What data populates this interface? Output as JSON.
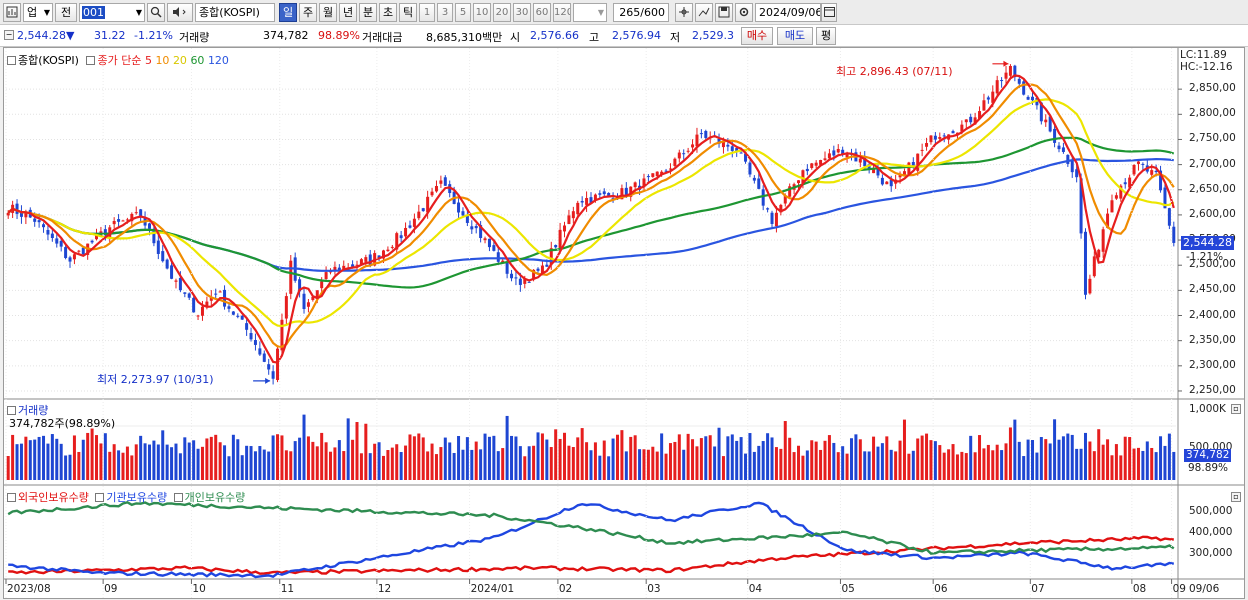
{
  "toolbar": {
    "market": "업",
    "prev": "전",
    "code": "001",
    "name": "종합(KOSPI)",
    "periods": [
      "일",
      "주",
      "월",
      "년",
      "분",
      "초",
      "틱"
    ],
    "selected_period": "일",
    "intervals": [
      "1",
      "3",
      "5",
      "10",
      "20",
      "30",
      "60",
      "120"
    ],
    "count": "265/600",
    "date": "2024/09/06"
  },
  "quote": {
    "price": "2,544.28",
    "change_arrow": "▼",
    "change": "31.22",
    "change_pct": "-1.21%",
    "volume_label": "거래량",
    "volume": "374,782",
    "volume_pct": "98.89%",
    "amount_label": "거래대금",
    "amount": "8,685,310백만",
    "open_label": "시",
    "open": "2,576.66",
    "high_label": "고",
    "high": "2,576.94",
    "low_label": "저",
    "low": "2,529.3",
    "buy_label": "매수",
    "sell_label": "매도",
    "eval_label": "평"
  },
  "price_panel": {
    "name": "종합(KOSPI)",
    "ma_title": "종가 단순",
    "ma_periods": [
      "5",
      "10",
      "20",
      "60",
      "120"
    ],
    "lc": "LC:11.89",
    "hc": "HC:-12.16",
    "high_annotation": "최고 2,896.43 (07/11)",
    "low_annotation": "최저 2,273.97 (10/31)",
    "last_price_tag": "2,544.28",
    "last_change_tag": "-1.21%",
    "y_ticks": [
      "2,850,00",
      "2,800,00",
      "2,750,00",
      "2,700,00",
      "2,650,00",
      "2,600,00",
      "2,550,00",
      "2,500,00",
      "2,450,00",
      "2,400,00",
      "2,350,00",
      "2,300,00",
      "2,250,00"
    ]
  },
  "volume_panel": {
    "title": "거래량",
    "value_label": "374,782주(98.89%)",
    "y_ticks": [
      "1,000K",
      "500,000"
    ],
    "last_tag": "374,782",
    "last_pct": "98.89%"
  },
  "flow_panel": {
    "series": [
      "외국인보유수량",
      "기관보유수량",
      "개인보유수량"
    ],
    "y_ticks": [
      "500,000",
      "400,000",
      "300,000"
    ]
  },
  "x_axis": [
    "2023/08",
    "09",
    "10",
    "11",
    "12",
    "2024/01",
    "02",
    "03",
    "04",
    "05",
    "06",
    "07",
    "08",
    "09"
  ],
  "x_right_label": "09/06",
  "colors": {
    "up": "#e61e1e",
    "down": "#1e46d2",
    "ma5": "#e61e1e",
    "ma10": "#f08c00",
    "ma20": "#ece600",
    "ma60": "#1e9632",
    "ma120": "#2a55e0",
    "foreign": "#e01010",
    "institution": "#1e46e0",
    "individual": "#2e8c50"
  },
  "chart_data": {
    "type": "candlestick",
    "title": "종합(KOSPI)",
    "y_range": [
      2240,
      2900
    ],
    "price_anchors": [
      {
        "date": "2023/08/01",
        "close": 2615
      },
      {
        "date": "2023/08/10",
        "close": 2590
      },
      {
        "date": "2023/08/22",
        "close": 2510
      },
      {
        "date": "2023/09/05",
        "close": 2575
      },
      {
        "date": "2023/09/15",
        "close": 2600
      },
      {
        "date": "2023/09/27",
        "close": 2460
      },
      {
        "date": "2023/10/05",
        "close": 2405
      },
      {
        "date": "2023/10/12",
        "close": 2450
      },
      {
        "date": "2023/10/23",
        "close": 2360
      },
      {
        "date": "2023/10/31",
        "close": 2278
      },
      {
        "date": "2023/11/06",
        "close": 2500
      },
      {
        "date": "2023/11/10",
        "close": 2410
      },
      {
        "date": "2023/11/20",
        "close": 2490
      },
      {
        "date": "2023/12/04",
        "close": 2510
      },
      {
        "date": "2023/12/14",
        "close": 2560
      },
      {
        "date": "2023/12/28",
        "close": 2660
      },
      {
        "date": "2024/01/10",
        "close": 2560
      },
      {
        "date": "2024/01/22",
        "close": 2465
      },
      {
        "date": "2024/02/01",
        "close": 2490
      },
      {
        "date": "2024/02/13",
        "close": 2630
      },
      {
        "date": "2024/02/26",
        "close": 2640
      },
      {
        "date": "2024/03/12",
        "close": 2680
      },
      {
        "date": "2024/03/26",
        "close": 2760
      },
      {
        "date": "2024/04/08",
        "close": 2730
      },
      {
        "date": "2024/04/19",
        "close": 2590
      },
      {
        "date": "2024/04/30",
        "close": 2690
      },
      {
        "date": "2024/05/13",
        "close": 2730
      },
      {
        "date": "2024/05/24",
        "close": 2690
      },
      {
        "date": "2024/05/31",
        "close": 2650
      },
      {
        "date": "2024/06/14",
        "close": 2760
      },
      {
        "date": "2024/06/25",
        "close": 2780
      },
      {
        "date": "2024/07/11",
        "close": 2890
      },
      {
        "date": "2024/07/22",
        "close": 2780
      },
      {
        "date": "2024/08/02",
        "close": 2680
      },
      {
        "date": "2024/08/05",
        "close": 2440
      },
      {
        "date": "2024/08/14",
        "close": 2640
      },
      {
        "date": "2024/08/23",
        "close": 2700
      },
      {
        "date": "2024/08/30",
        "close": 2675
      },
      {
        "date": "2024/09/06",
        "close": 2544.28
      }
    ],
    "moving_averages": [
      "5",
      "10",
      "20",
      "60",
      "120"
    ],
    "annotations": {
      "high": {
        "label": "최고 2,896.43 (07/11)",
        "value": 2896.43,
        "date": "07/11"
      },
      "low": {
        "label": "최저 2,273.97 (10/31)",
        "value": 2273.97,
        "date": "10/31"
      }
    },
    "volume": {
      "last": 374782,
      "range_max": 1000000,
      "note": "daily bars ~300K–900K"
    },
    "holdings": {
      "series": [
        {
          "name": "외국인보유수량",
          "anchors": [
            [
              0,
              240000
            ],
            [
              40,
              260000
            ],
            [
              60,
              240000
            ],
            [
              120,
              260000
            ],
            [
              150,
              250000
            ],
            [
              175,
              300000
            ],
            [
              230,
              360000
            ],
            [
              260,
              380000
            ],
            [
              270,
              360000
            ]
          ]
        },
        {
          "name": "기관보유수량",
          "anchors": [
            [
              0,
              270000
            ],
            [
              20,
              240000
            ],
            [
              60,
              230000
            ],
            [
              110,
              380000
            ],
            [
              130,
              520000
            ],
            [
              150,
              450000
            ],
            [
              170,
              520000
            ],
            [
              190,
              330000
            ],
            [
              210,
              300000
            ],
            [
              230,
              320000
            ],
            [
              250,
              260000
            ],
            [
              270,
              280000
            ]
          ]
        },
        {
          "name": "개인보유수량",
          "anchors": [
            [
              0,
              480000
            ],
            [
              30,
              520000
            ],
            [
              60,
              500000
            ],
            [
              110,
              470000
            ],
            [
              130,
              420000
            ],
            [
              150,
              360000
            ],
            [
              190,
              400000
            ],
            [
              210,
              320000
            ],
            [
              230,
              330000
            ],
            [
              260,
              340000
            ],
            [
              270,
              350000
            ]
          ]
        }
      ],
      "y_range": [
        220000,
        560000
      ]
    }
  }
}
